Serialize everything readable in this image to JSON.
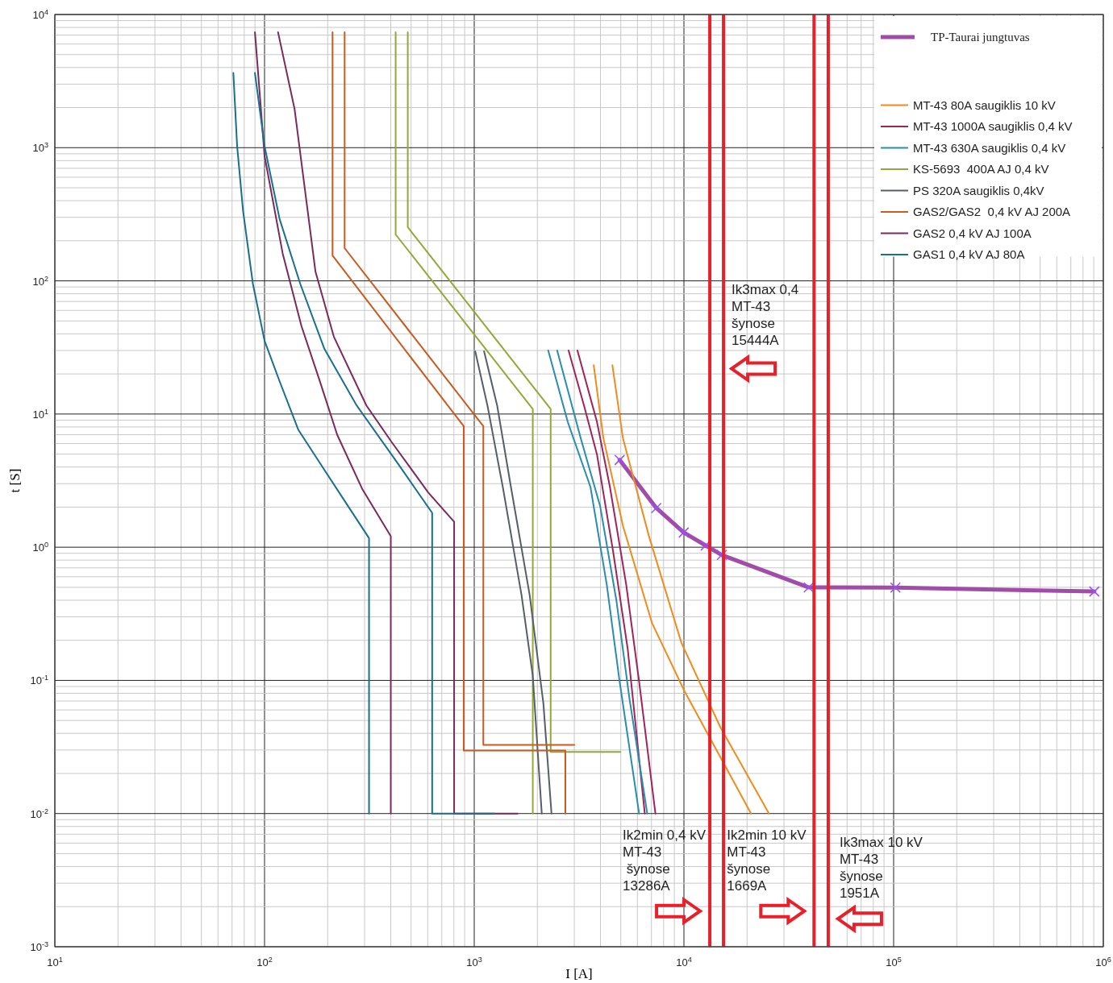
{
  "chart_data": {
    "type": "line",
    "xlabel": "I [A]",
    "ylabel": "t [S]",
    "log": "xy",
    "grid": true,
    "legend": "top right",
    "xlim": [
      10,
      1000000
    ],
    "ylim": [
      0.001,
      10000
    ],
    "xticks": [
      {
        "value": 10,
        "label": "10$^{1}$"
      },
      {
        "value": 20,
        "label": null
      },
      {
        "value": 30,
        "label": null
      },
      {
        "value": 40,
        "label": null
      },
      {
        "value": 50,
        "label": null
      },
      {
        "value": 60,
        "label": null
      },
      {
        "value": 70,
        "label": null
      },
      {
        "value": 80,
        "label": null
      },
      {
        "value": 90,
        "label": null
      },
      {
        "value": 100,
        "label": "10$^{2}$"
      },
      {
        "value": 200,
        "label": null
      },
      {
        "value": 300,
        "label": null
      },
      {
        "value": 400,
        "label": null
      },
      {
        "value": 500,
        "label": null
      },
      {
        "value": 600,
        "label": null
      },
      {
        "value": 700,
        "label": null
      },
      {
        "value": 800,
        "label": null
      },
      {
        "value": 900,
        "label": null
      },
      {
        "value": 1000,
        "label": "10$^{3}$"
      },
      {
        "value": 2000,
        "label": null
      },
      {
        "value": 3000,
        "label": null
      },
      {
        "value": 4000,
        "label": null
      },
      {
        "value": 5000,
        "label": null
      },
      {
        "value": 6000,
        "label": null
      },
      {
        "value": 7000,
        "label": null
      },
      {
        "value": 8000,
        "label": null
      },
      {
        "value": 9000,
        "label": null
      },
      {
        "value": 10000,
        "label": "10$^{4}$"
      },
      {
        "value": 20000,
        "label": null
      },
      {
        "value": 30000,
        "label": null
      },
      {
        "value": 60000,
        "label": null
      },
      {
        "value": 70000,
        "label": null
      },
      {
        "value": 80000,
        "label": null
      },
      {
        "value": 90000,
        "label": null
      },
      {
        "value": 100000,
        "label": "10$^{5}$"
      },
      {
        "value": 200000,
        "label": null
      },
      {
        "value": 300000,
        "label": null
      },
      {
        "value": 400000,
        "label": null
      },
      {
        "value": 500000,
        "label": null
      },
      {
        "value": 600000,
        "label": null
      },
      {
        "value": 700000,
        "label": null
      },
      {
        "value": 800000,
        "label": null
      },
      {
        "value": 900000,
        "label": null
      },
      {
        "value": 1000000,
        "label": "10$^{6}$"
      }
    ],
    "yticks": [
      {
        "value": 0.001,
        "label": "10$^{-3}$"
      },
      {
        "value": 0.002,
        "label": null
      },
      {
        "value": 0.003,
        "label": null
      },
      {
        "value": 0.004,
        "label": null
      },
      {
        "value": 0.005,
        "label": null
      },
      {
        "value": 0.006,
        "label": null
      },
      {
        "value": 0.007,
        "label": null
      },
      {
        "value": 0.008,
        "label": null
      },
      {
        "value": 0.009,
        "label": null
      },
      {
        "value": 0.01,
        "label": "10$^{-2}$"
      },
      {
        "value": 0.02,
        "label": null
      },
      {
        "value": 0.03,
        "label": null
      },
      {
        "value": 0.04,
        "label": null
      },
      {
        "value": 0.05,
        "label": null
      },
      {
        "value": 0.06,
        "label": null
      },
      {
        "value": 0.07,
        "label": null
      },
      {
        "value": 0.08,
        "label": null
      },
      {
        "value": 0.09,
        "label": null
      },
      {
        "value": 0.1,
        "label": "10$^{-1}$"
      },
      {
        "value": 0.2,
        "label": null
      },
      {
        "value": 0.3,
        "label": null
      },
      {
        "value": 0.4,
        "label": null
      },
      {
        "value": 0.5,
        "label": null
      },
      {
        "value": 0.6,
        "label": null
      },
      {
        "value": 0.7,
        "label": null
      },
      {
        "value": 0.8,
        "label": null
      },
      {
        "value": 0.9,
        "label": null
      },
      {
        "value": 1,
        "label": "10$^{0}$"
      },
      {
        "value": 2,
        "label": null
      },
      {
        "value": 3,
        "label": null
      },
      {
        "value": 4,
        "label": null
      },
      {
        "value": 5,
        "label": null
      },
      {
        "value": 6,
        "label": null
      },
      {
        "value": 7,
        "label": null
      },
      {
        "value": 8,
        "label": null
      },
      {
        "value": 9,
        "label": null
      },
      {
        "value": 10,
        "label": "10$^{1}$"
      },
      {
        "value": 20,
        "label": null
      },
      {
        "value": 30,
        "label": null
      },
      {
        "value": 40,
        "label": null
      },
      {
        "value": 50,
        "label": null
      },
      {
        "value": 60,
        "label": null
      },
      {
        "value": 70,
        "label": null
      },
      {
        "value": 80,
        "label": null
      },
      {
        "value": 90,
        "label": null
      },
      {
        "value": 100,
        "label": "10$^{2}$"
      },
      {
        "value": 200,
        "label": null
      },
      {
        "value": 300,
        "label": null
      },
      {
        "value": 400,
        "label": null
      },
      {
        "value": 500,
        "label": null
      },
      {
        "value": 600,
        "label": null
      },
      {
        "value": 700,
        "label": null
      },
      {
        "value": 800,
        "label": null
      },
      {
        "value": 900,
        "label": null
      },
      {
        "value": 1000,
        "label": "10$^{3}$"
      },
      {
        "value": 2000,
        "label": null
      },
      {
        "value": 3000,
        "label": null
      },
      {
        "value": 4000,
        "label": null
      },
      {
        "value": 5000,
        "label": null
      },
      {
        "value": 6000,
        "label": null
      },
      {
        "value": 7000,
        "label": null
      },
      {
        "value": 8000,
        "label": null
      },
      {
        "value": 9000,
        "label": null
      },
      {
        "value": 10000,
        "label": "10$^{4}$"
      }
    ],
    "series": [
      {
        "name": "TP-Taurai jungtuvas",
        "color": "#a04ca8",
        "marker": "cross",
        "x": [
          4937,
          7380,
          9980,
          12700,
          15170,
          39400,
          102000,
          906000
        ],
        "values": [
          4.52,
          1.97,
          1.29,
          1.03,
          0.874,
          0.499,
          0.497,
          0.465
        ]
      },
      {
        "name": "MT-43 80A saugiklis 10 kV",
        "color": "#f08c1e",
        "x": [
          3712,
          4130,
          5117,
          7047,
          10070,
          20900
        ],
        "values": [
          23.3,
          6.59,
          1.45,
          0.269,
          0.0828,
          0.01
        ]
      },
      {
        "color": "#f08c1e",
        "x": [
          4557,
          5117,
          6800,
          9720,
          14900,
          25450
        ],
        "values": [
          23.3,
          6.59,
          1.22,
          0.192,
          0.0447,
          0.01
        ]
      },
      {
        "name": "MT-43 1000A saugiklis 0,4 kV",
        "color": "#a0245c",
        "x": [
          2818,
          3337,
          3848,
          4597,
          5395,
          6506
        ],
        "values": [
          30,
          11.6,
          4.98,
          0.925,
          0.172,
          0.01
        ]
      },
      {
        "color": "#a0245c",
        "x": [
          3106,
          3848,
          4436,
          5302,
          6113,
          7311
        ],
        "values": [
          30,
          8.73,
          2.84,
          0.527,
          0.098,
          0.01
        ]
      },
      {
        "name": "MT-43 630A saugiklis 0,4 kV",
        "color": "#2a8db0",
        "x": [
          2254,
          2792,
          3582,
          4283,
          4935,
          6113
        ],
        "values": [
          30,
          8.73,
          2.84,
          0.527,
          0.098,
          0.01
        ]
      },
      {
        "color": "#2a8db0",
        "x": [
          2486,
          3219,
          3986,
          4764,
          5492,
          6683
        ],
        "values": [
          30,
          6.59,
          2.03,
          0.398,
          0.074,
          0.01
        ]
      },
      {
        "name": "KS-5693  400A AJ 0,4 kV",
        "color": "#94a83a",
        "x": [
          422,
          422,
          1902,
          1902
        ],
        "values": [
          7350,
          223,
          10.9,
          0.01
        ]
      },
      {
        "color": "#94a83a",
        "x": [
          482,
          482,
          2315,
          2315,
          4980
        ],
        "values": [
          7350,
          253,
          10.9,
          0.029,
          0.029
        ]
      },
      {
        "name": "PS 320A saugiklis 0,4kV",
        "color": "#555f6a",
        "x": [
          1011,
          1156,
          1368,
          1680,
          1902,
          2099
        ],
        "values": [
          29.6,
          11.6,
          2.84,
          0.44,
          0.108,
          0.01
        ]
      },
      {
        "color": "#555f6a",
        "x": [
          1114,
          1286,
          1496,
          1837,
          2137,
          2336
        ],
        "values": [
          29.6,
          11.6,
          2.84,
          0.44,
          0.067,
          0.01
        ]
      },
      {
        "name": "GAS2/GAS2  0,4 kV AJ 200A",
        "color": "#c95a20",
        "x": [
          211,
          211,
          891,
          891,
          2720,
          2720
        ],
        "values": [
          7350,
          155,
          8.1,
          0.0297,
          0.0297,
          0.01
        ]
      },
      {
        "color": "#c95a20",
        "x": [
          241,
          241,
          1105,
          1105,
          3000
        ],
        "values": [
          7350,
          176,
          8.1,
          0.0328,
          0.0328
        ]
      },
      {
        "name": "GAS2 0,4 kV AJ 100A",
        "color": "#7a2a5c",
        "x": [
          90,
          100,
          122,
          150,
          183,
          222,
          293,
          400,
          400
        ],
        "values": [
          7350,
          871,
          161,
          45.7,
          17.9,
          7.0,
          2.72,
          1.21,
          0.01
        ]
      },
      {
        "color": "#7a2a5c",
        "x": [
          116,
          139,
          175,
          214,
          306,
          404,
          603,
          802,
          802,
          1610
        ],
        "values": [
          7350,
          1960,
          117,
          38.1,
          11.6,
          6.15,
          2.58,
          1.55,
          0.01,
          0.01
        ]
      },
      {
        "name": "GAS1 0,4 kV AJ 80A",
        "color": "#1a6f8f",
        "x": [
          71,
          74,
          79,
          88,
          100,
          118,
          145,
          193,
          252,
          315,
          315
        ],
        "values": [
          3640,
          1030,
          335,
          95,
          35.5,
          17.6,
          7.6,
          3.8,
          2.0,
          1.17,
          0.01
        ]
      },
      {
        "color": "#1a6f8f",
        "x": [
          90,
          100,
          118,
          148,
          193,
          275,
          430,
          630,
          630,
          1250
        ],
        "values": [
          3640,
          1030,
          291,
          95,
          30.8,
          11.6,
          4.3,
          1.81,
          0.01,
          0.01
        ]
      }
    ],
    "ref_lines": [
      {
        "axis": "x",
        "value": 13286,
        "color": "#e8202a"
      },
      {
        "axis": "x",
        "value": 15444,
        "color": "#e8202a"
      },
      {
        "axis": "x",
        "value": 41725,
        "color": "#e8202a"
      },
      {
        "axis": "x",
        "value": 48775,
        "color": "#e8202a"
      }
    ],
    "annotations": [
      {
        "text": "Ik2min 0,4 kV\nMT-43\n šynose\n13286A",
        "x": 13286,
        "y": 0.008
      },
      {
        "text": "Ik3max 0,4\nMT-43\nšynose\n15444A",
        "x": 15444,
        "y": 100
      },
      {
        "text": "Ik2min 10 kV\nMT-43\nšynose\n1669A",
        "x": 41725,
        "y": 0.008
      },
      {
        "text": "Ik3max 10 kV\nMT-43\nšynose\n1951A",
        "x": 48775,
        "y": 0.007
      }
    ]
  }
}
